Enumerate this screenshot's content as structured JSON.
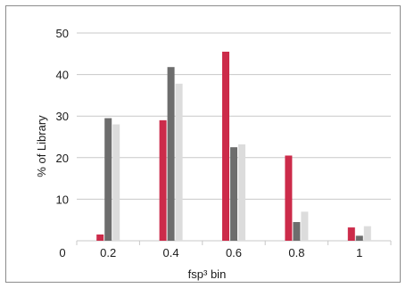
{
  "chart_data": {
    "type": "bar",
    "title": "",
    "xlabel": "fsp³ bin",
    "ylabel": "% of Library",
    "categories": [
      "0.2",
      "0.4",
      "0.6",
      "0.8",
      "1"
    ],
    "x_origin_label": "0",
    "ylim": [
      0,
      50
    ],
    "yticks": [
      10,
      20,
      30,
      40,
      50
    ],
    "grid": "horizontal",
    "legend": "none",
    "series": [
      {
        "values": [
          1.5,
          29,
          45.5,
          20.5,
          3.2
        ],
        "color": "#cc2b4a"
      },
      {
        "values": [
          29.5,
          41.8,
          22.5,
          4.5,
          1.2
        ],
        "color": "#6d6d6d"
      },
      {
        "values": [
          28,
          37.8,
          23.2,
          7,
          3.5
        ],
        "color": "#dcdcdc"
      }
    ]
  }
}
